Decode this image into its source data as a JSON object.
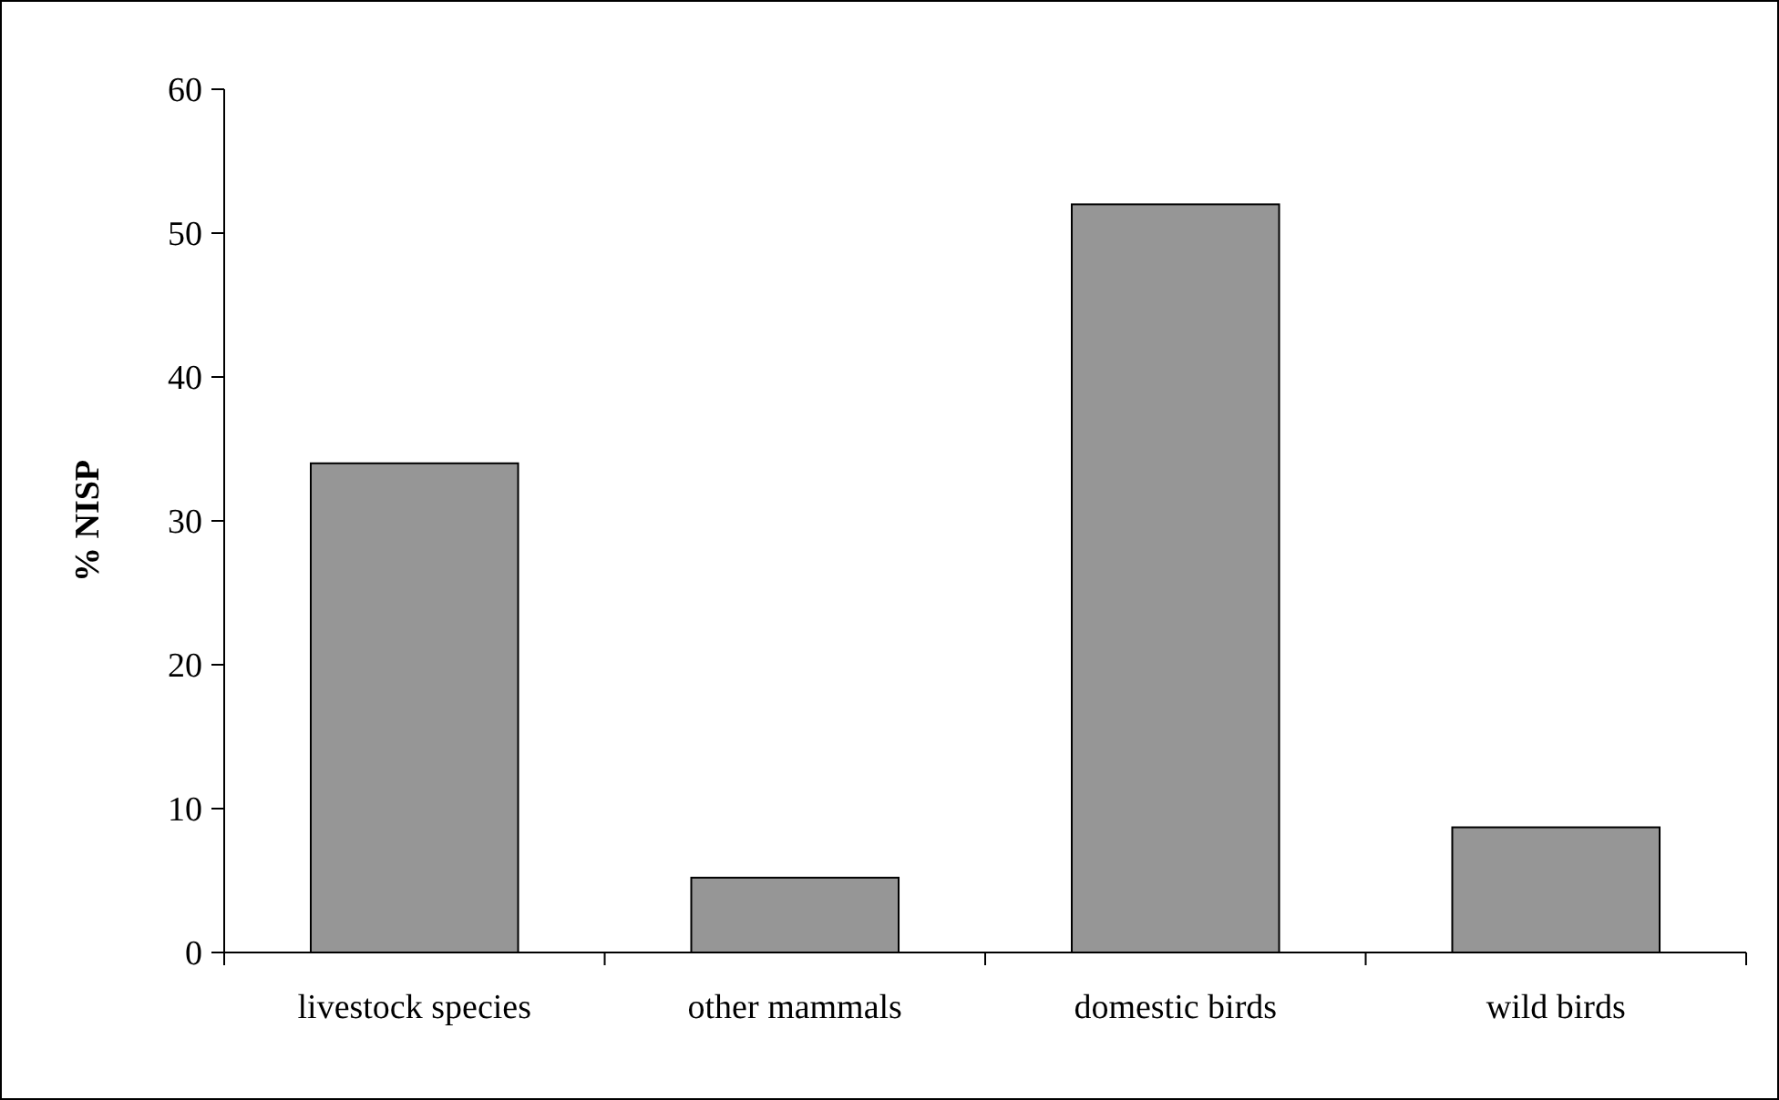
{
  "chart_data": {
    "type": "bar",
    "ylabel": "% NISP",
    "categories": [
      "livestock species",
      "other mammals",
      "domestic birds",
      "wild birds"
    ],
    "values": [
      34,
      5.2,
      52,
      8.7
    ],
    "color": "#969696",
    "ylim": [
      0,
      60
    ],
    "yticks": [
      0,
      10,
      20,
      30,
      40,
      50,
      60
    ],
    "grid": false
  }
}
